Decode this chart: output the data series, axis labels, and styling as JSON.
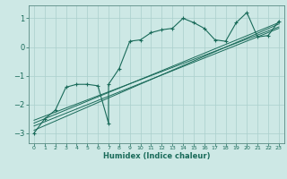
{
  "xlabel": "Humidex (Indice chaleur)",
  "bg_color": "#cde8e5",
  "grid_color": "#aacfcc",
  "line_color": "#1a6b5a",
  "spine_color": "#5a8a84",
  "xlim": [
    -0.5,
    23.5
  ],
  "ylim": [
    -3.35,
    1.45
  ],
  "xticks": [
    0,
    1,
    2,
    3,
    4,
    5,
    6,
    7,
    8,
    9,
    10,
    11,
    12,
    13,
    14,
    15,
    16,
    17,
    18,
    19,
    20,
    21,
    22,
    23
  ],
  "yticks": [
    -3,
    -2,
    -1,
    0,
    1
  ],
  "scatter_x": [
    0,
    1,
    2,
    3,
    4,
    5,
    6,
    7,
    7,
    8,
    9,
    10,
    11,
    12,
    13,
    14,
    15,
    16,
    17,
    18,
    19,
    20,
    21,
    22,
    23
  ],
  "scatter_y": [
    -3.0,
    -2.5,
    -2.2,
    -1.4,
    -1.3,
    -1.3,
    -1.35,
    -2.65,
    -1.3,
    -0.75,
    0.2,
    0.25,
    0.5,
    0.6,
    0.65,
    1.0,
    0.85,
    0.65,
    0.25,
    0.2,
    0.85,
    1.2,
    0.35,
    0.4,
    0.9
  ],
  "reg_lines": [
    {
      "x": [
        0,
        23
      ],
      "y": [
        -2.9,
        0.8
      ]
    },
    {
      "x": [
        0,
        23
      ],
      "y": [
        -2.75,
        0.65
      ]
    },
    {
      "x": [
        0,
        23
      ],
      "y": [
        -2.65,
        0.85
      ]
    },
    {
      "x": [
        0,
        23
      ],
      "y": [
        -2.55,
        0.7
      ]
    }
  ],
  "figsize": [
    3.2,
    2.0
  ],
  "dpi": 100
}
